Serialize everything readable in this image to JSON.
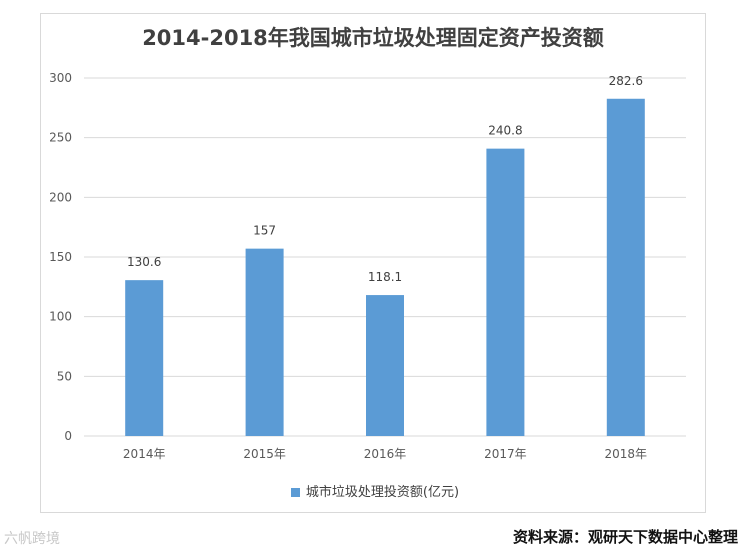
{
  "colors": {
    "bar": "#5b9bd5",
    "grid": "#d9d9d9",
    "text": "#595959"
  },
  "source_text": "资料来源：观研天下数据中心整理",
  "watermark_text": "六帆跨境",
  "chart_data": {
    "type": "bar",
    "title": "2014-2018年我国城市垃圾处理固定资产投资额",
    "categories": [
      "2014年",
      "2015年",
      "2016年",
      "2017年",
      "2018年"
    ],
    "series": [
      {
        "name": "城市垃圾处理投资额(亿元)",
        "values": [
          130.6,
          157,
          118.1,
          240.8,
          282.6
        ]
      }
    ],
    "ylim": [
      0,
      300
    ],
    "yticks": [
      0,
      50,
      100,
      150,
      200,
      250,
      300
    ],
    "grid": true,
    "legend": "bottom"
  }
}
